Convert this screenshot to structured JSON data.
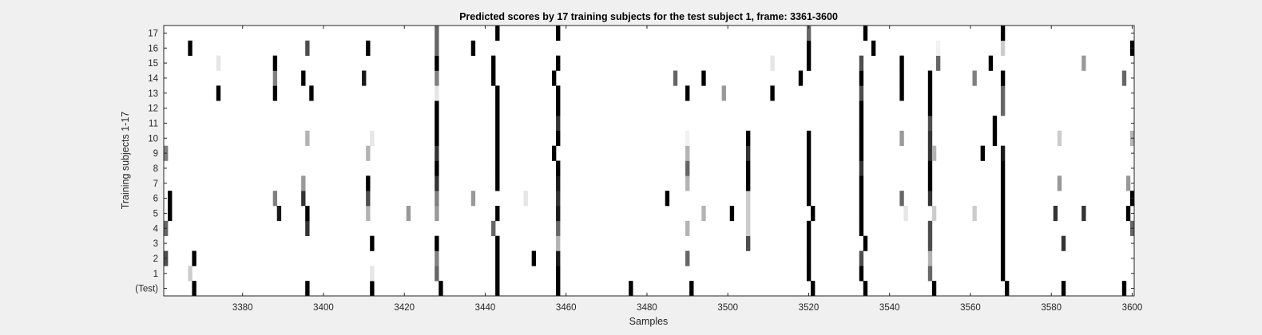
{
  "chart_data": {
    "type": "heatmap",
    "title": "Predicted scores by 17 training subjects for the test subject 1, frame: 3361-3600",
    "xlabel": "Samples",
    "ylabel": "Training subjects 1-17",
    "xlim": [
      3361,
      3600
    ],
    "x_ticks": [
      3380,
      3400,
      3420,
      3440,
      3460,
      3480,
      3500,
      3520,
      3540,
      3560,
      3580,
      3600
    ],
    "y_rows": [
      "(Test)",
      "1",
      "2",
      "3",
      "4",
      "5",
      "6",
      "7",
      "8",
      "9",
      "10",
      "11",
      "12",
      "13",
      "14",
      "15",
      "16",
      "17"
    ],
    "colormap": "gray (1 = black, 0 = white)",
    "grid": false,
    "cells": {
      "(Test)": [
        [
          3368,
          1
        ],
        [
          3396,
          1
        ],
        [
          3412,
          1
        ],
        [
          3429,
          1
        ],
        [
          3443,
          1
        ],
        [
          3458,
          1
        ],
        [
          3476,
          1
        ],
        [
          3491,
          1
        ],
        [
          3521,
          1
        ],
        [
          3534,
          1
        ],
        [
          3551,
          1
        ],
        [
          3569,
          1
        ],
        [
          3583,
          1
        ],
        [
          3598,
          1
        ]
      ],
      "1": [
        [
          3367,
          0.2
        ],
        [
          3412,
          0.1
        ],
        [
          3428,
          0.6
        ],
        [
          3443,
          1
        ],
        [
          3458,
          1
        ],
        [
          3520,
          1
        ],
        [
          3533,
          1
        ],
        [
          3550,
          0.6
        ],
        [
          3568,
          1
        ]
      ],
      "2": [
        [
          3361,
          0.7
        ],
        [
          3368,
          1
        ],
        [
          3411,
          0
        ],
        [
          3428,
          0.5
        ],
        [
          3443,
          1
        ],
        [
          3452,
          1
        ],
        [
          3458,
          0.9
        ],
        [
          3490,
          0.6
        ],
        [
          3520,
          1
        ],
        [
          3533,
          0.7
        ],
        [
          3550,
          0.3
        ],
        [
          3568,
          1
        ]
      ],
      "3": [
        [
          3412,
          1
        ],
        [
          3428,
          1
        ],
        [
          3443,
          1
        ],
        [
          3458,
          0.3
        ],
        [
          3505,
          0.7
        ],
        [
          3520,
          1
        ],
        [
          3534,
          1
        ],
        [
          3550,
          0.7
        ],
        [
          3568,
          1
        ],
        [
          3583,
          0.8
        ]
      ],
      "4": [
        [
          3361,
          0.6
        ],
        [
          3396,
          0.8
        ],
        [
          3442,
          0.6
        ],
        [
          3458,
          0.6
        ],
        [
          3490,
          0.3
        ],
        [
          3505,
          0.2
        ],
        [
          3520,
          1
        ],
        [
          3533,
          1
        ],
        [
          3550,
          0.7
        ],
        [
          3568,
          1
        ],
        [
          3600,
          0.6
        ]
      ],
      "5": [
        [
          3362,
          1
        ],
        [
          3389,
          0.9
        ],
        [
          3396,
          1
        ],
        [
          3411,
          0.3
        ],
        [
          3421,
          0.4
        ],
        [
          3428,
          0.4
        ],
        [
          3443,
          1
        ],
        [
          3458,
          0.9
        ],
        [
          3494,
          0.3
        ],
        [
          3501,
          1
        ],
        [
          3505,
          0.2
        ],
        [
          3521,
          1
        ],
        [
          3533,
          1
        ],
        [
          3544,
          0.1
        ],
        [
          3551,
          0.2
        ],
        [
          3561,
          0.2
        ],
        [
          3568,
          1
        ],
        [
          3581,
          0.8
        ],
        [
          3588,
          0.8
        ],
        [
          3599,
          1
        ]
      ],
      "6": [
        [
          3362,
          1
        ],
        [
          3388,
          0.5
        ],
        [
          3395,
          0.8
        ],
        [
          3411,
          0.7
        ],
        [
          3428,
          0.5
        ],
        [
          3437,
          0.4
        ],
        [
          3450,
          0.1
        ],
        [
          3458,
          0.8
        ],
        [
          3485,
          1
        ],
        [
          3505,
          0.2
        ],
        [
          3520,
          1
        ],
        [
          3533,
          1
        ],
        [
          3543,
          0.6
        ],
        [
          3550,
          0.8
        ],
        [
          3568,
          1
        ],
        [
          3600,
          1
        ]
      ],
      "7": [
        [
          3395,
          0.4
        ],
        [
          3411,
          1
        ],
        [
          3428,
          0.8
        ],
        [
          3443,
          1
        ],
        [
          3458,
          0.9
        ],
        [
          3490,
          0.3
        ],
        [
          3505,
          1
        ],
        [
          3520,
          1
        ],
        [
          3533,
          1
        ],
        [
          3550,
          1
        ],
        [
          3568,
          1
        ],
        [
          3582,
          0.4
        ],
        [
          3599,
          0.4
        ]
      ],
      "8": [
        [
          3428,
          1
        ],
        [
          3443,
          1
        ],
        [
          3458,
          1
        ],
        [
          3490,
          0.6
        ],
        [
          3505,
          1
        ],
        [
          3520,
          1
        ],
        [
          3533,
          0.8
        ],
        [
          3550,
          1
        ],
        [
          3568,
          1
        ]
      ],
      "9": [
        [
          3361,
          0.5
        ],
        [
          3411,
          0.3
        ],
        [
          3428,
          0.8
        ],
        [
          3443,
          1
        ],
        [
          3457,
          1
        ],
        [
          3490,
          0.3
        ],
        [
          3505,
          0.8
        ],
        [
          3520,
          1
        ],
        [
          3533,
          1
        ],
        [
          3550,
          0.8
        ],
        [
          3551,
          0.3
        ],
        [
          3563,
          1
        ],
        [
          3568,
          0.9
        ]
      ],
      "10": [
        [
          3396,
          0.3
        ],
        [
          3412,
          0.1
        ],
        [
          3428,
          1
        ],
        [
          3443,
          1
        ],
        [
          3458,
          1
        ],
        [
          3490,
          0.05
        ],
        [
          3505,
          1
        ],
        [
          3520,
          1
        ],
        [
          3533,
          1
        ],
        [
          3543,
          0.4
        ],
        [
          3550,
          0.8
        ],
        [
          3566,
          1
        ],
        [
          3582,
          0.2
        ],
        [
          3600,
          0.3
        ]
      ],
      "11": [
        [
          3428,
          1
        ],
        [
          3443,
          1
        ],
        [
          3458,
          0.8
        ],
        [
          3533,
          1
        ],
        [
          3550,
          0.7
        ],
        [
          3566,
          1
        ]
      ],
      "12": [
        [
          3428,
          1
        ],
        [
          3443,
          1
        ],
        [
          3458,
          1
        ],
        [
          3533,
          1
        ],
        [
          3550,
          1
        ],
        [
          3568,
          0.6
        ]
      ],
      "13": [
        [
          3374,
          1
        ],
        [
          3388,
          1
        ],
        [
          3397,
          1
        ],
        [
          3428,
          0.1
        ],
        [
          3443,
          1
        ],
        [
          3458,
          1
        ],
        [
          3490,
          1
        ],
        [
          3499,
          0.4
        ],
        [
          3511,
          1
        ],
        [
          3533,
          0.7
        ],
        [
          3543,
          1
        ],
        [
          3550,
          1
        ],
        [
          3568,
          0.6
        ]
      ],
      "14": [
        [
          3388,
          0.5
        ],
        [
          3395,
          1
        ],
        [
          3410,
          0.9
        ],
        [
          3428,
          0.5
        ],
        [
          3442,
          1
        ],
        [
          3457,
          1
        ],
        [
          3487,
          0.6
        ],
        [
          3494,
          1
        ],
        [
          3518,
          1
        ],
        [
          3533,
          1
        ],
        [
          3543,
          1
        ],
        [
          3550,
          1
        ],
        [
          3561,
          0.5
        ],
        [
          3568,
          1
        ],
        [
          3598,
          0.6
        ]
      ],
      "15": [
        [
          3374,
          0.1
        ],
        [
          3388,
          1
        ],
        [
          3428,
          1
        ],
        [
          3442,
          1
        ],
        [
          3458,
          1
        ],
        [
          3511,
          0.1
        ],
        [
          3520,
          1
        ],
        [
          3533,
          0.7
        ],
        [
          3543,
          1
        ],
        [
          3552,
          0.6
        ],
        [
          3565,
          1
        ],
        [
          3588,
          0.4
        ]
      ],
      "16": [
        [
          3367,
          1
        ],
        [
          3396,
          0.7
        ],
        [
          3411,
          1
        ],
        [
          3428,
          0.6
        ],
        [
          3437,
          1
        ],
        [
          3520,
          1
        ],
        [
          3536,
          1
        ],
        [
          3552,
          0.05
        ],
        [
          3568,
          0.2
        ],
        [
          3600,
          1
        ]
      ],
      "17": [
        [
          3428,
          0.6
        ],
        [
          3443,
          1
        ],
        [
          3458,
          1
        ],
        [
          3520,
          0.6
        ],
        [
          3534,
          1
        ],
        [
          3568,
          1
        ]
      ]
    }
  }
}
